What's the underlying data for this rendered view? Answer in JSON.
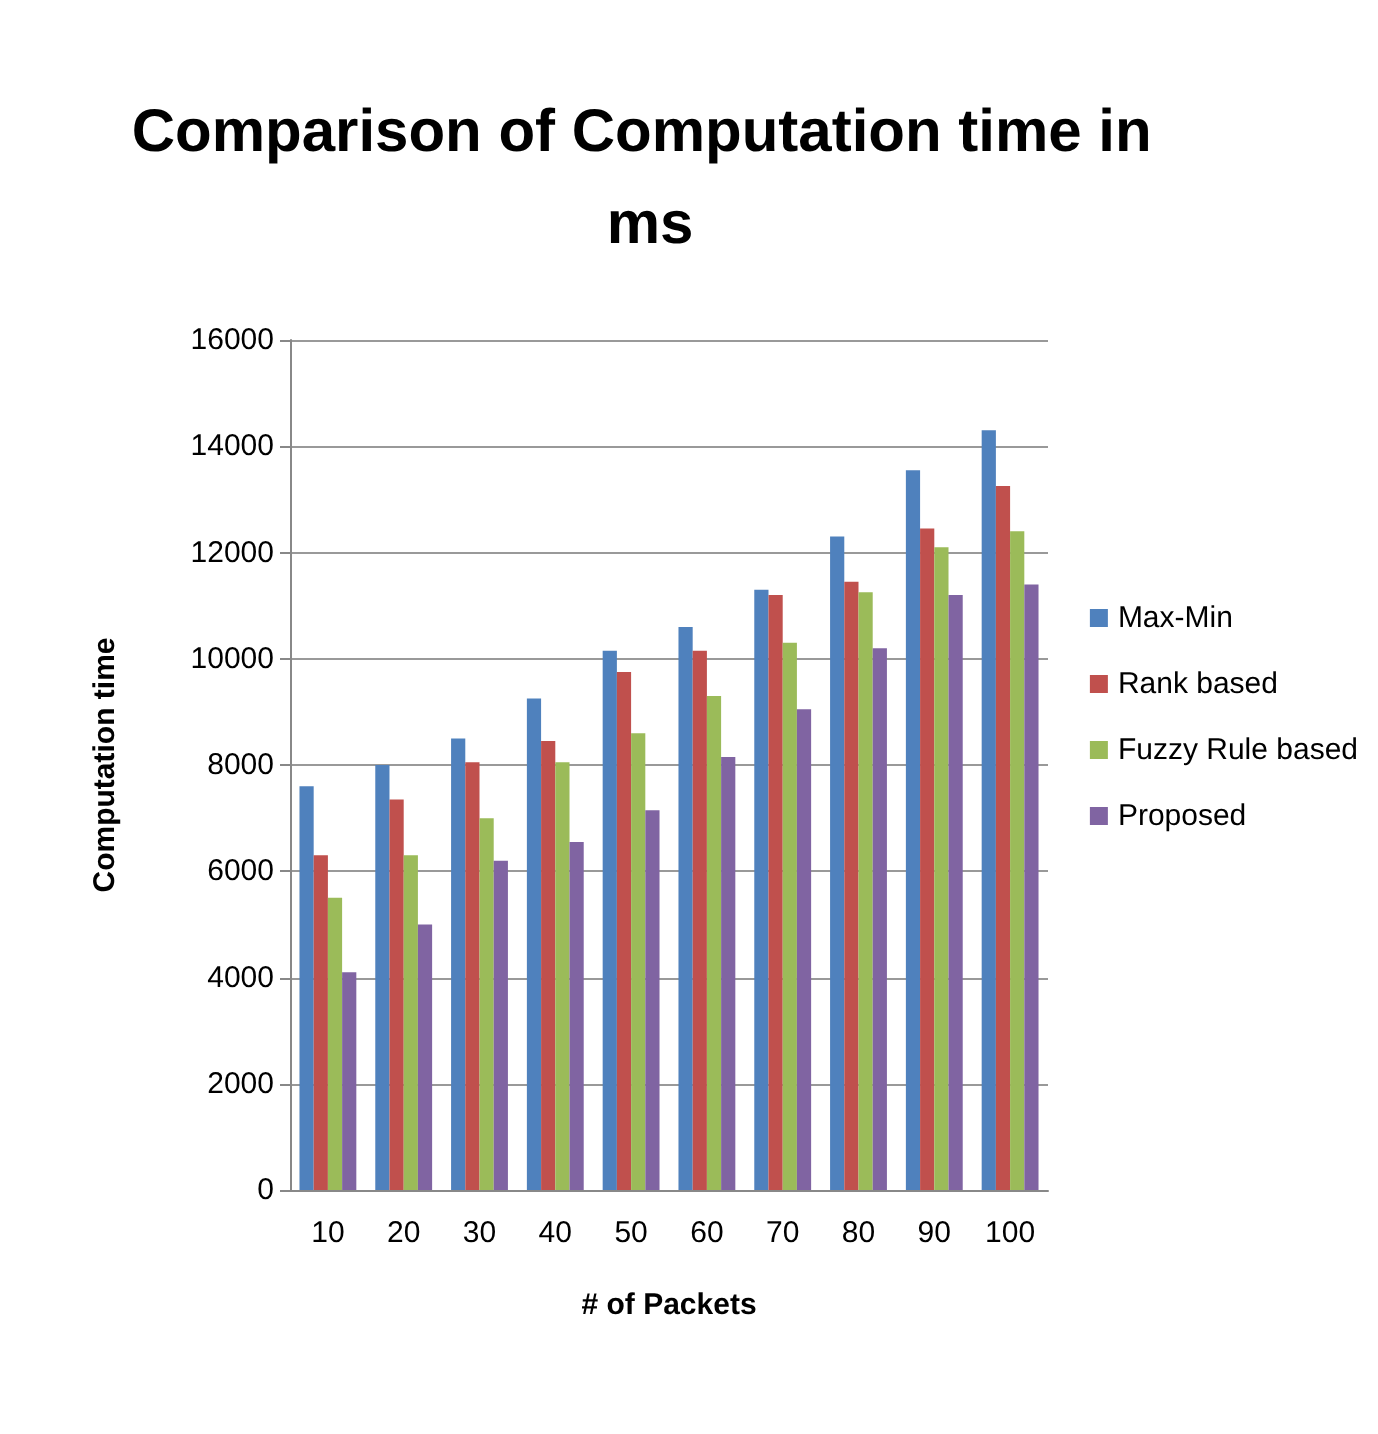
{
  "chart_data": {
    "type": "bar",
    "title": "Comparison of Computation time in ms",
    "xlabel": "# of Packets",
    "ylabel": "Computation time",
    "categories": [
      "10",
      "20",
      "30",
      "40",
      "50",
      "60",
      "70",
      "80",
      "90",
      "100"
    ],
    "series": [
      {
        "name": "Max-Min",
        "color": "#4f81bd",
        "values": [
          7600,
          8000,
          8500,
          9250,
          10150,
          10600,
          11300,
          12300,
          13550,
          14300
        ]
      },
      {
        "name": "Rank based",
        "color": "#c0504d",
        "values": [
          6300,
          7350,
          8050,
          8450,
          9750,
          10150,
          11200,
          11450,
          12450,
          13250
        ]
      },
      {
        "name": "Fuzzy Rule based",
        "color": "#9bbb59",
        "values": [
          5500,
          6300,
          7000,
          8050,
          8600,
          9300,
          10300,
          11250,
          12100,
          12400
        ]
      },
      {
        "name": "Proposed",
        "color": "#8064a2",
        "values": [
          4100,
          5000,
          6200,
          6550,
          7150,
          8150,
          9050,
          10200,
          11200,
          11400
        ]
      }
    ],
    "ylim": [
      0,
      16000
    ],
    "yticks": [
      0,
      2000,
      4000,
      6000,
      8000,
      10000,
      12000,
      14000,
      16000
    ],
    "grid": "y",
    "legend": "right"
  }
}
